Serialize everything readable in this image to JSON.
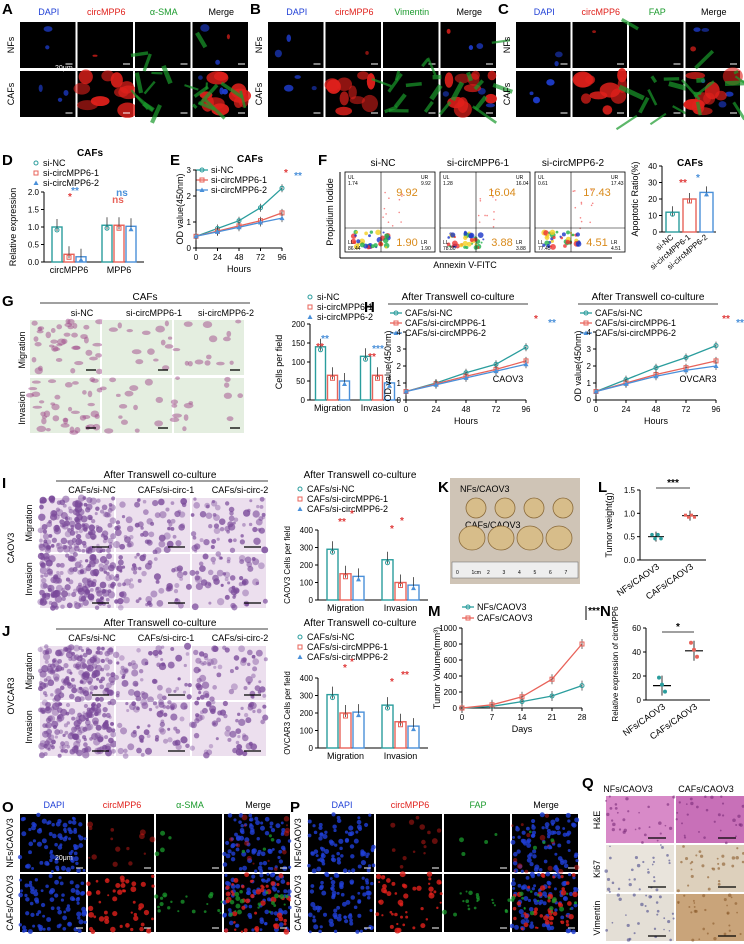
{
  "panel_letters": [
    "A",
    "B",
    "C",
    "D",
    "E",
    "F",
    "G",
    "H",
    "I",
    "J",
    "K",
    "L",
    "M",
    "N",
    "O",
    "P",
    "Q"
  ],
  "colors": {
    "dapi": "#1f3fd6",
    "circ": "#e0201b",
    "green": "#1a9a2c",
    "accent_red": "#e03a3a",
    "teal": "#2a9d9d",
    "red": "#e8635a",
    "blue": "#4a90d9",
    "orange": "#d98a1a"
  },
  "A": {
    "labels": [
      "DAPI",
      "circMPP6",
      "α-SMA",
      "Merge"
    ],
    "rows": [
      "NFs",
      "CAFs"
    ],
    "scale": "20μm"
  },
  "B": {
    "labels": [
      "DAPI",
      "circMPP6",
      "Vimentin",
      "Merge"
    ],
    "rows": [
      "NFs",
      "CAFs"
    ]
  },
  "C": {
    "labels": [
      "DAPI",
      "circMPP6",
      "FAP",
      "Merge"
    ],
    "rows": [
      "NFs",
      "CAFs"
    ]
  },
  "D": {
    "title": "CAFs",
    "ylabel": "Relative expression",
    "legend": [
      "si-NC",
      "si-circMPP6-1",
      "si-circMPP6-2"
    ],
    "ticks_y": [
      "0.0",
      "0.5",
      "1.0",
      "1.5",
      "2.0"
    ],
    "categories": [
      "circMPP6",
      "MPP6"
    ],
    "sig": [
      "*",
      "**",
      "ns",
      "ns"
    ]
  },
  "E": {
    "title": "CAFs",
    "ylabel": "OD value(450nm)",
    "xlabel": "Hours",
    "legend": [
      "si-NC",
      "si-circMPP6-1",
      "si-circMPP6-2"
    ],
    "ticks_x": [
      "0",
      "24",
      "48",
      "72",
      "96"
    ],
    "ticks_y": [
      "0",
      "1",
      "2",
      "3"
    ],
    "sig": [
      "*",
      "**"
    ]
  },
  "F": {
    "headers": [
      "si-NC",
      "si-circMPP6-1",
      "si-circMPP6-2"
    ],
    "ur": [
      "9.92",
      "16.04",
      "17.43"
    ],
    "lr": [
      "1.90",
      "3.88",
      "4.51"
    ],
    "ul": [
      "1.74",
      "1.28",
      "0.61"
    ],
    "ll": [
      "86.44",
      "78.80",
      "77.45"
    ],
    "ylabel": "Propidium Iodide",
    "xlabel": "Annexin V-FITC",
    "q_labels": [
      "UL",
      "UR",
      "LL",
      "LR"
    ],
    "bar_title": "CAFs",
    "bar_ylabel": "Apoptotic Ratio(%)",
    "bar_ticks": [
      "0",
      "10",
      "20",
      "30",
      "40"
    ],
    "bar_cats": [
      "si-NC",
      "si-circMPP6-1",
      "si-circMPP6-2"
    ],
    "sig": [
      "**",
      "*"
    ]
  },
  "G": {
    "title": "CAFs",
    "cols": [
      "si-NC",
      "si-circMPP6-1",
      "si-circMPP6-2"
    ],
    "rows": [
      "Migration",
      "Invasion"
    ],
    "ylabel": "Cells per field",
    "legend": [
      "si-NC",
      "si-circMPP6-1",
      "si-circMPP6-2"
    ],
    "ticks_y": [
      "0",
      "50",
      "100",
      "150",
      "200"
    ],
    "cats": [
      "Migration",
      "Invasion"
    ],
    "sig": [
      "**",
      "**",
      "**",
      "***"
    ]
  },
  "H": {
    "title": "After Transwell co-culture",
    "legend": [
      "CAFs/si-NC",
      "CAFs/si-circMPP6-1",
      "CAFs/si-circMPP6-2"
    ],
    "ylabel": "OD value(450nm)",
    "xlabel": "Hours",
    "ticks_x": [
      "0",
      "24",
      "48",
      "72",
      "96"
    ],
    "ticks_y": [
      "0",
      "1",
      "2",
      "3",
      "4"
    ],
    "cells": [
      "CAOV3",
      "OVCAR3"
    ],
    "sig1": [
      "*",
      "**"
    ],
    "sig2": [
      "**",
      "***"
    ]
  },
  "I": {
    "title": "After Transwell co-culture",
    "cols": [
      "CAFs/si-NC",
      "CAFs/si-circ-1",
      "CAFs/si-circ-2"
    ],
    "rows": [
      "Migration",
      "Invasion"
    ],
    "side": "CAOV3",
    "legend": [
      "CAFs/si-NC",
      "CAFs/si-circMPP6-1",
      "CAFs/si-circMPP6-2"
    ],
    "ylabel": "CAOV3 Cells per field",
    "ticks_y": [
      "0",
      "100",
      "200",
      "300",
      "400"
    ],
    "cats": [
      "Migration",
      "Invasion"
    ],
    "sig": [
      "**",
      "*",
      "*",
      "*"
    ]
  },
  "J": {
    "title": "After Transwell co-culture",
    "cols": [
      "CAFs/si-NC",
      "CAFs/si-circ-1",
      "CAFs/si-circ-2"
    ],
    "rows": [
      "Migration",
      "Invasion"
    ],
    "side": "OVCAR3",
    "legend": [
      "CAFs/si-NC",
      "CAFs/si-circMPP6-1",
      "CAFs/si-circMPP6-2"
    ],
    "ylabel": "OVCAR3 Cells per field",
    "ticks_y": [
      "0",
      "100",
      "200",
      "300",
      "400"
    ],
    "cats": [
      "Migration",
      "Invasion"
    ],
    "sig": [
      "*",
      "*",
      "*",
      "**"
    ]
  },
  "K": {
    "rows": [
      "NFs/CAOV3",
      "CAFs/CAOV3"
    ],
    "ruler": [
      "0",
      "1cm",
      "2",
      "3",
      "4",
      "5",
      "6",
      "7"
    ]
  },
  "L": {
    "ylabel": "Tumor weight(g)",
    "ticks_y": [
      "0.0",
      "0.5",
      "1.0",
      "1.5"
    ],
    "cats": [
      "NFs/CAOV3",
      "CAFs/CAOV3"
    ],
    "sig": "***"
  },
  "M": {
    "legend": [
      "NFs/CAOV3",
      "CAFs/CAOV3"
    ],
    "ylabel": "Tumor Volume(mm³)",
    "xlabel": "Days",
    "ticks_x": [
      "0",
      "7",
      "14",
      "21",
      "28"
    ],
    "ticks_y": [
      "0",
      "200",
      "400",
      "600",
      "800",
      "1000"
    ],
    "sig": "***"
  },
  "N": {
    "ylabel": "Relative expression of circMPP6",
    "ticks_y": [
      "0",
      "20",
      "40",
      "60"
    ],
    "cats": [
      "NFs/CAOV3",
      "CAFs/CAOV3"
    ],
    "sig": "*"
  },
  "O": {
    "labels": [
      "DAPI",
      "circMPP6",
      "α-SMA",
      "Merge"
    ],
    "rows": [
      "NFs/CAOV3",
      "CAFs/CAOV3"
    ],
    "scale": "20μm"
  },
  "P": {
    "labels": [
      "DAPI",
      "circMPP6",
      "FAP",
      "Merge"
    ],
    "rows": [
      "NFs/CAOV3",
      "CAFs/CAOV3"
    ]
  },
  "Q": {
    "cols": [
      "NFs/CAOV3",
      "CAFs/CAOV3"
    ],
    "rows": [
      "H&E",
      "Ki67",
      "Vimentin"
    ]
  },
  "chart_data": [
    {
      "panel": "D",
      "type": "bar",
      "title": "CAFs",
      "ylabel": "Relative expression",
      "categories": [
        "circMPP6",
        "MPP6"
      ],
      "ylim": [
        0,
        2.0
      ],
      "series": [
        {
          "name": "si-NC",
          "values": [
            1.0,
            1.05
          ]
        },
        {
          "name": "si-circMPP6-1",
          "values": [
            0.22,
            1.05
          ]
        },
        {
          "name": "si-circMPP6-2",
          "values": [
            0.15,
            1.02
          ]
        }
      ]
    },
    {
      "panel": "E",
      "type": "line",
      "title": "CAFs",
      "xlabel": "Hours",
      "ylabel": "OD value(450nm)",
      "x": [
        0,
        24,
        48,
        72,
        96
      ],
      "ylim": [
        0,
        3
      ],
      "xlim": [
        0,
        96
      ],
      "series": [
        {
          "name": "si-NC",
          "values": [
            0.45,
            0.75,
            1.05,
            1.55,
            2.3
          ]
        },
        {
          "name": "si-circMPP6-1",
          "values": [
            0.45,
            0.65,
            0.85,
            1.05,
            1.35
          ]
        },
        {
          "name": "si-circMPP6-2",
          "values": [
            0.45,
            0.62,
            0.8,
            0.98,
            1.15
          ]
        }
      ]
    },
    {
      "panel": "F",
      "type": "bar",
      "title": "CAFs",
      "ylabel": "Apoptotic Ratio(%)",
      "categories": [
        "si-NC",
        "si-circMPP6-1",
        "si-circMPP6-2"
      ],
      "ylim": [
        0,
        40
      ],
      "values": [
        12,
        20,
        24
      ]
    },
    {
      "panel": "G",
      "type": "bar",
      "ylabel": "Cells per field",
      "categories": [
        "Migration",
        "Invasion"
      ],
      "ylim": [
        0,
        200
      ],
      "series": [
        {
          "name": "si-NC",
          "values": [
            140,
            115
          ]
        },
        {
          "name": "si-circMPP6-1",
          "values": [
            65,
            65
          ]
        },
        {
          "name": "si-circMPP6-2",
          "values": [
            50,
            45
          ]
        }
      ]
    },
    {
      "panel": "H1",
      "type": "line",
      "title": "After Transwell co-culture",
      "xlabel": "Hours",
      "ylabel": "OD value(450nm)",
      "x": [
        0,
        24,
        48,
        72,
        96
      ],
      "ylim": [
        0,
        4
      ],
      "series": [
        {
          "name": "CAFs/si-NC",
          "values": [
            0.5,
            1.0,
            1.6,
            2.1,
            3.1
          ]
        },
        {
          "name": "CAFs/si-circMPP6-1",
          "values": [
            0.5,
            0.95,
            1.4,
            1.8,
            2.3
          ]
        },
        {
          "name": "CAFs/si-circMPP6-2",
          "values": [
            0.5,
            0.9,
            1.3,
            1.7,
            2.1
          ]
        }
      ]
    },
    {
      "panel": "H2",
      "type": "line",
      "title": "After Transwell co-culture",
      "xlabel": "Hours",
      "ylabel": "OD value(450nm)",
      "x": [
        0,
        24,
        48,
        72,
        96
      ],
      "ylim": [
        0,
        4
      ],
      "series": [
        {
          "name": "CAFs/si-NC",
          "values": [
            0.5,
            1.2,
            1.9,
            2.5,
            3.2
          ]
        },
        {
          "name": "CAFs/si-circMPP6-1",
          "values": [
            0.5,
            1.0,
            1.5,
            1.9,
            2.3
          ]
        },
        {
          "name": "CAFs/si-circMPP6-2",
          "values": [
            0.5,
            0.95,
            1.4,
            1.75,
            2.0
          ]
        }
      ]
    },
    {
      "panel": "I",
      "type": "bar",
      "ylabel": "CAOV3 Cells per field",
      "categories": [
        "Migration",
        "Invasion"
      ],
      "ylim": [
        0,
        400
      ],
      "series": [
        {
          "name": "CAFs/si-NC",
          "values": [
            290,
            230
          ]
        },
        {
          "name": "CAFs/si-circMPP6-1",
          "values": [
            150,
            100
          ]
        },
        {
          "name": "CAFs/si-circMPP6-2",
          "values": [
            135,
            85
          ]
        }
      ]
    },
    {
      "panel": "J",
      "type": "bar",
      "ylabel": "OVCAR3 Cells per field",
      "categories": [
        "Migration",
        "Invasion"
      ],
      "ylim": [
        0,
        400
      ],
      "series": [
        {
          "name": "CAFs/si-NC",
          "values": [
            305,
            245
          ]
        },
        {
          "name": "CAFs/si-circMPP6-1",
          "values": [
            200,
            150
          ]
        },
        {
          "name": "CAFs/si-circMPP6-2",
          "values": [
            205,
            125
          ]
        }
      ]
    },
    {
      "panel": "L",
      "type": "scatter",
      "ylabel": "Tumor weight(g)",
      "categories": [
        "NFs/CAOV3",
        "CAFs/CAOV3"
      ],
      "ylim": [
        0,
        1.5
      ],
      "values": [
        0.5,
        0.95
      ]
    },
    {
      "panel": "M",
      "type": "line",
      "xlabel": "Days",
      "ylabel": "Tumor Volume(mm³)",
      "x": [
        0,
        7,
        14,
        21,
        28
      ],
      "ylim": [
        0,
        1000
      ],
      "series": [
        {
          "name": "NFs/CAOV3",
          "values": [
            0,
            20,
            80,
            150,
            280
          ]
        },
        {
          "name": "CAFs/CAOV3",
          "values": [
            0,
            40,
            140,
            360,
            800
          ]
        }
      ]
    },
    {
      "panel": "N",
      "type": "scatter",
      "ylabel": "Relative expression of circMPP6",
      "categories": [
        "NFs/CAOV3",
        "CAFs/CAOV3"
      ],
      "ylim": [
        0,
        60
      ],
      "values": [
        12,
        41
      ]
    }
  ]
}
